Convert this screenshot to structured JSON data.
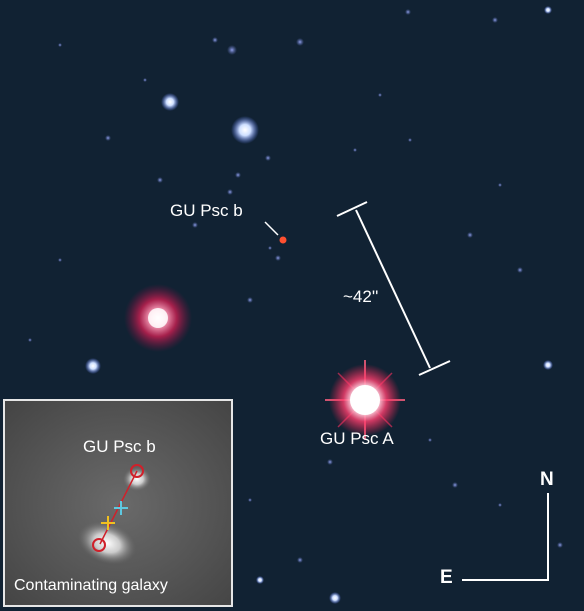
{
  "labels": {
    "planet": "GU Psc b",
    "separation": "~42''",
    "host_star": "GU Psc A",
    "north": "N",
    "east": "E"
  },
  "inset": {
    "planet": "GU Psc b",
    "caption": "Contaminating galaxy"
  },
  "colors": {
    "sky": "#102030",
    "annotation": "#ffffff",
    "marker_circle": "#d0202a",
    "marker_cross_cyan": "#5ec8e0",
    "marker_cross_yellow": "#f0c020"
  }
}
